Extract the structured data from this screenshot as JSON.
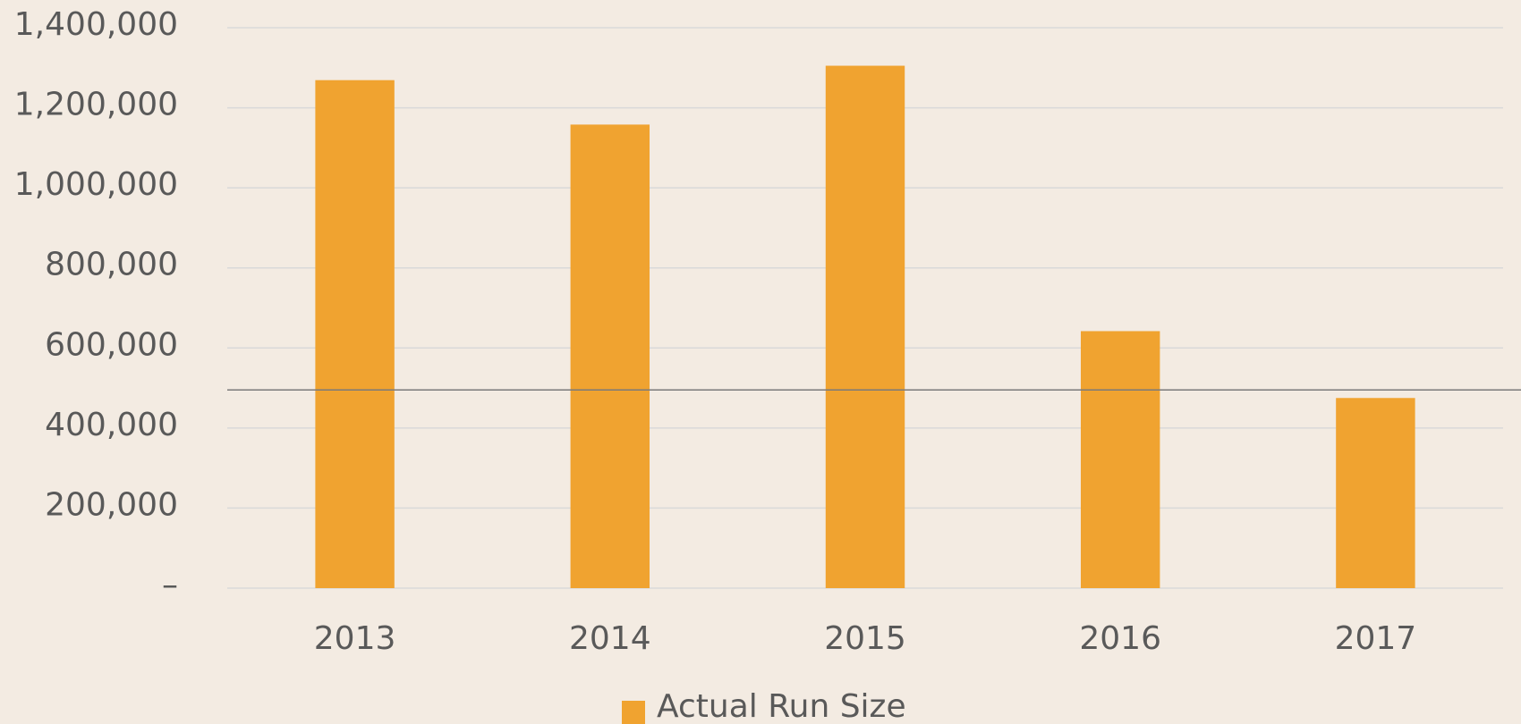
{
  "chart_data": {
    "type": "bar",
    "categories": [
      "2013",
      "2014",
      "2015",
      "2016",
      "2017"
    ],
    "series": [
      {
        "name": "Actual Run Size",
        "color": "#f0a330",
        "values": [
          1269000,
          1158000,
          1305000,
          642000,
          475000
        ]
      }
    ],
    "ylim": [
      0,
      1400000
    ],
    "yticks": [
      {
        "value": 0,
        "label": "–"
      },
      {
        "value": 200000,
        "label": "200,000"
      },
      {
        "value": 400000,
        "label": "400,000"
      },
      {
        "value": 600000,
        "label": "600,000"
      },
      {
        "value": 800000,
        "label": "800,000"
      },
      {
        "value": 1000000,
        "label": "1,000,000"
      },
      {
        "value": 1200000,
        "label": "1,200,000"
      },
      {
        "value": 1400000,
        "label": "1,400,000"
      }
    ],
    "reference_line": 495000,
    "grid": true,
    "legend": "bottom"
  }
}
